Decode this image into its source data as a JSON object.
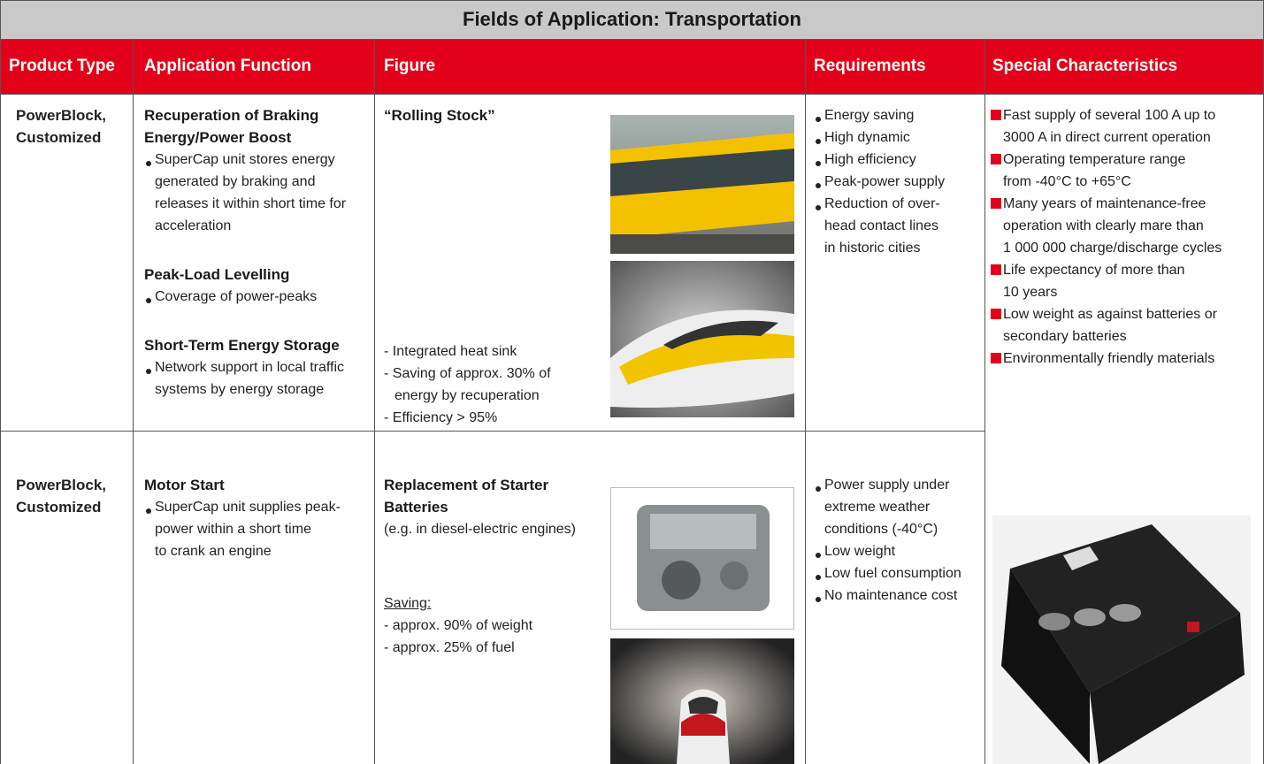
{
  "title": "Fields of Application: Transportation",
  "headers": [
    "Product Type",
    "Application Function",
    "Figure",
    "Requirements",
    "Special Characteristics"
  ],
  "rows": [
    {
      "product_type": [
        "PowerBlock,",
        "Customized"
      ],
      "application": [
        {
          "style": "heading",
          "lines": [
            "Recuperation of Braking",
            "Energy/Power Boost"
          ]
        },
        {
          "style": "bullet",
          "lines": [
            "SuperCap unit stores energy",
            "generated by braking and",
            "releases it within short time for",
            "acceleration"
          ]
        },
        {
          "style": "heading",
          "lines": [
            "Peak-Load Levelling"
          ]
        },
        {
          "style": "bullet",
          "lines": [
            "Coverage of power-peaks"
          ]
        },
        {
          "style": "heading",
          "lines": [
            "Short-Term Energy Storage"
          ]
        },
        {
          "style": "bullet",
          "lines": [
            "Network support in local traffic",
            "systems by energy storage"
          ]
        }
      ],
      "figure": [
        {
          "style": "heading",
          "lines": [
            "“Rolling Stock”"
          ]
        },
        {
          "style": "dash",
          "lines": [
            "- Integrated heat sink"
          ]
        },
        {
          "style": "dash",
          "lines": [
            "- Saving of approx. 30% of",
            "energy by recuperation"
          ]
        },
        {
          "style": "dash",
          "lines": [
            "- Efficiency > 95%"
          ]
        }
      ],
      "requirements": [
        {
          "style": "bullet",
          "lines": [
            "Energy saving"
          ]
        },
        {
          "style": "bullet",
          "lines": [
            "High dynamic"
          ]
        },
        {
          "style": "bullet",
          "lines": [
            "High efficiency"
          ]
        },
        {
          "style": "bullet",
          "lines": [
            "Peak-power supply"
          ]
        },
        {
          "style": "bullet",
          "lines": [
            "Reduction of over-",
            "head contact lines",
            "in historic cities"
          ]
        }
      ]
    },
    {
      "product_type": [
        "PowerBlock,",
        "Customized"
      ],
      "application": [
        {
          "style": "heading",
          "lines": [
            "Motor Start"
          ]
        },
        {
          "style": "bullet",
          "lines": [
            "SuperCap unit supplies peak-",
            "power within a short time",
            "to crank an engine"
          ]
        }
      ],
      "figure": [
        {
          "style": "heading",
          "lines": [
            "Replacement of Starter",
            "Batteries"
          ]
        },
        {
          "style": "plain",
          "lines": [
            "(e.g. in diesel-electric engines)"
          ]
        },
        {
          "style": "underline",
          "lines": [
            "Saving:"
          ]
        },
        {
          "style": "dash",
          "lines": [
            "- approx. 90% of weight"
          ]
        },
        {
          "style": "dash",
          "lines": [
            "- approx. 25% of fuel"
          ]
        }
      ],
      "requirements": [
        {
          "style": "bullet",
          "lines": [
            "Power supply under",
            "extreme weather",
            "conditions (-40°C)"
          ]
        },
        {
          "style": "bullet",
          "lines": [
            "Low weight"
          ]
        },
        {
          "style": "bullet",
          "lines": [
            "Low fuel consumption"
          ]
        },
        {
          "style": "bullet",
          "lines": [
            "No maintenance cost"
          ]
        }
      ]
    }
  ],
  "special_characteristics": [
    {
      "style": "square",
      "lines": [
        "Fast supply of several 100 A up to",
        "3000 A in direct current operation"
      ]
    },
    {
      "style": "square",
      "lines": [
        "Operating temperature range",
        "from -40°C to +65°C"
      ]
    },
    {
      "style": "square",
      "lines": [
        "Many years of maintenance-free",
        "operation with clearly mare than",
        "1 000 000 charge/discharge cycles"
      ]
    },
    {
      "style": "square",
      "lines": [
        "Life expectancy of more than",
        "10 years"
      ]
    },
    {
      "style": "square",
      "lines": [
        "Low weight as against batteries or",
        "secondary batteries"
      ]
    },
    {
      "style": "square",
      "lines": [
        "Environmentally friendly materials"
      ]
    }
  ]
}
